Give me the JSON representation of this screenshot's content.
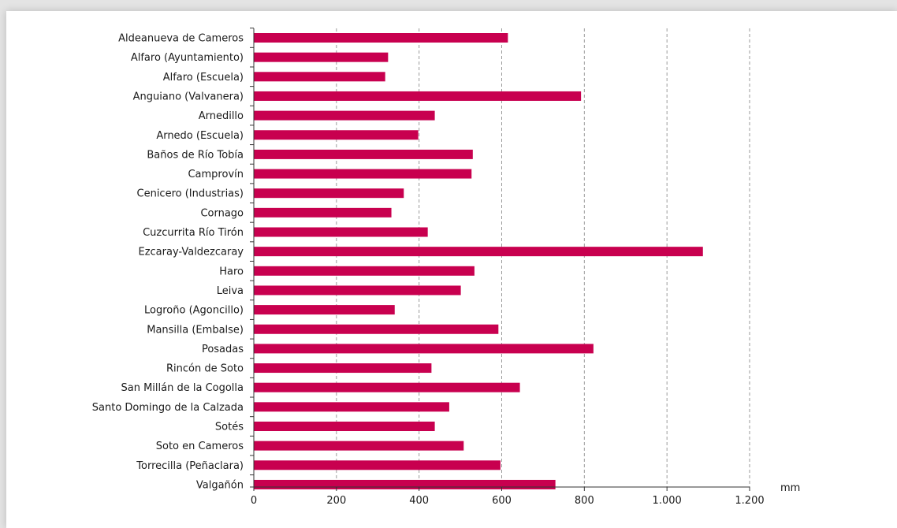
{
  "chart_data": {
    "type": "bar",
    "orientation": "horizontal",
    "categories": [
      "Aldeanueva de Cameros",
      "Alfaro (Ayuntamiento)",
      "Alfaro (Escuela)",
      "Anguiano (Valvanera)",
      "Arnedillo",
      "Arnedo (Escuela)",
      "Baños de Río Tobía",
      "Camprovín",
      "Cenicero (Industrias)",
      "Cornago",
      "Cuzcurrita Río Tirón",
      "Ezcaray-Valdezcaray",
      "Haro",
      "Leiva",
      "Logroño (Agoncillo)",
      "Mansilla (Embalse)",
      "Posadas",
      "Rincón de Soto",
      "San Millán de la Cogolla",
      "Santo Domingo de la Calzada",
      "Sotés",
      "Soto en Cameros",
      "Torrecilla (Peñaclara)",
      "Valgañón"
    ],
    "values": [
      615,
      325,
      318,
      792,
      438,
      398,
      530,
      527,
      363,
      333,
      421,
      1087,
      534,
      501,
      341,
      592,
      822,
      430,
      644,
      473,
      438,
      508,
      597,
      730
    ],
    "xlim": [
      0,
      1200
    ],
    "xticks": [
      0,
      200,
      400,
      600,
      800,
      1000,
      1200
    ],
    "xtick_labels": [
      "0",
      "200",
      "400",
      "600",
      "800",
      "1.000",
      "1.200"
    ],
    "xlabel": "mm",
    "grid": "vertical dashed",
    "bar_color": "#c8004f"
  }
}
